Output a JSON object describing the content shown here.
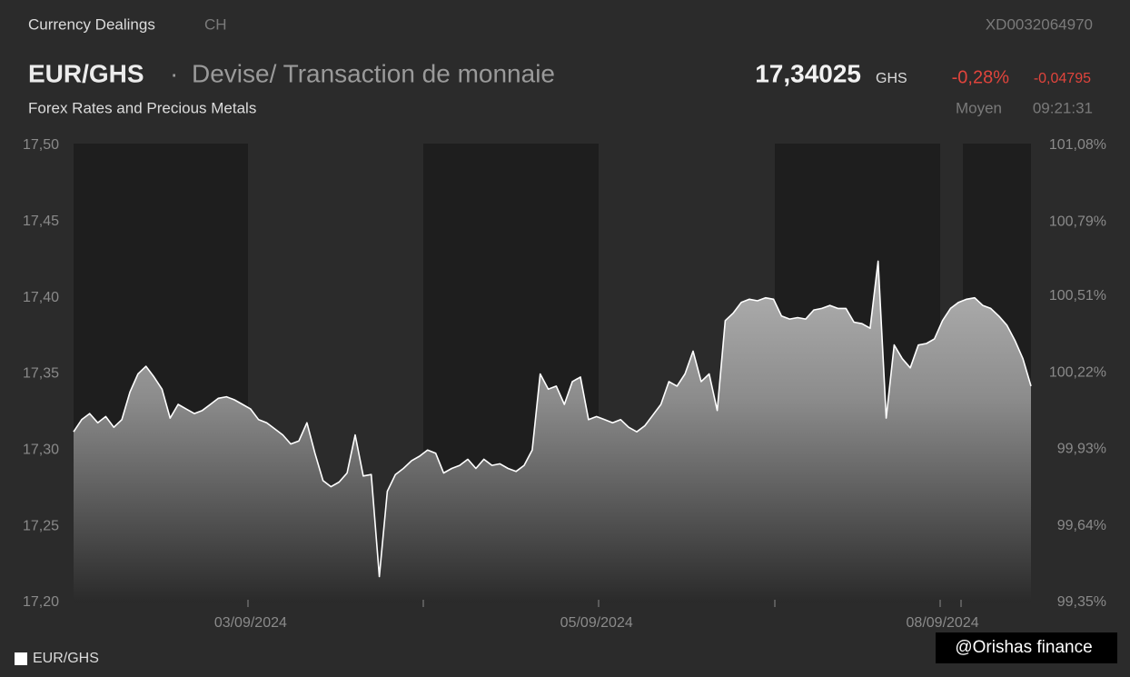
{
  "header": {
    "section": "Currency Dealings",
    "market": "CH",
    "isin": "XD0032064970",
    "symbol": "EUR/GHS",
    "description": "Devise/ Transaction de monnaie",
    "price": "17,34025",
    "currency": "GHS",
    "change_pct": "-0,28%",
    "change_abs": "-0,04795",
    "category": "Forex Rates and Precious Metals",
    "price_type": "Moyen",
    "time": "09:21:31"
  },
  "watermark": "@Orishas finance",
  "chart_data": {
    "type": "area",
    "categories": [
      null,
      null,
      null,
      null,
      null,
      null,
      null,
      null,
      null,
      null,
      null,
      null,
      null,
      null,
      null,
      null,
      null,
      null,
      null,
      null,
      null,
      null,
      "03/09/2024",
      null,
      null,
      null,
      null,
      null,
      null,
      null,
      null,
      null,
      null,
      null,
      null,
      null,
      null,
      null,
      null,
      null,
      null,
      null,
      null,
      null,
      null,
      null,
      null,
      null,
      null,
      null,
      null,
      null,
      null,
      null,
      null,
      null,
      null,
      null,
      null,
      null,
      null,
      null,
      null,
      null,
      null,
      "05/09/2024",
      null,
      null,
      null,
      null,
      null,
      null,
      null,
      null,
      null,
      null,
      null,
      null,
      null,
      null,
      null,
      null,
      null,
      null,
      null,
      null,
      null,
      null,
      null,
      null,
      null,
      null,
      null,
      null,
      null,
      null,
      null,
      null,
      null,
      null,
      null,
      null,
      null,
      null,
      null,
      null,
      null,
      null,
      "08/09/2024",
      null,
      null,
      null,
      null,
      null,
      null,
      null,
      null,
      null,
      null,
      null
    ],
    "series": [
      {
        "name": "EUR/GHS",
        "color": "#ffffff",
        "values": [
          17.312,
          17.32,
          17.324,
          17.318,
          17.322,
          17.315,
          17.32,
          17.338,
          17.35,
          17.355,
          17.348,
          17.34,
          17.321,
          17.33,
          17.327,
          17.324,
          17.326,
          17.33,
          17.334,
          17.335,
          17.333,
          17.33,
          17.327,
          17.32,
          17.318,
          17.314,
          17.31,
          17.304,
          17.306,
          17.318,
          17.298,
          17.28,
          17.276,
          17.279,
          17.285,
          17.31,
          17.283,
          17.284,
          17.217,
          17.273,
          17.284,
          17.288,
          17.293,
          17.296,
          17.3,
          17.298,
          17.285,
          17.288,
          17.29,
          17.294,
          17.288,
          17.294,
          17.29,
          17.291,
          17.288,
          17.286,
          17.29,
          17.3,
          17.35,
          17.34,
          17.342,
          17.33,
          17.345,
          17.348,
          17.32,
          17.322,
          17.32,
          17.318,
          17.32,
          17.315,
          17.312,
          17.316,
          17.323,
          17.33,
          17.345,
          17.342,
          17.35,
          17.365,
          17.345,
          17.35,
          17.326,
          17.385,
          17.39,
          17.397,
          17.399,
          17.398,
          17.4,
          17.399,
          17.388,
          17.386,
          17.387,
          17.386,
          17.392,
          17.393,
          17.395,
          17.393,
          17.393,
          17.384,
          17.383,
          17.38,
          17.424,
          17.321,
          17.369,
          17.36,
          17.354,
          17.369,
          17.37,
          17.373,
          17.385,
          17.393,
          17.397,
          17.399,
          17.4,
          17.395,
          17.393,
          17.388,
          17.382,
          17.372,
          17.36,
          17.342
        ]
      }
    ],
    "ylim": [
      17.2,
      17.5
    ],
    "yticks": [
      {
        "value": 17.5,
        "label": "17,50"
      },
      {
        "value": 17.45,
        "label": "17,45"
      },
      {
        "value": 17.4,
        "label": "17,40"
      },
      {
        "value": 17.35,
        "label": "17,35"
      },
      {
        "value": 17.3,
        "label": "17,30"
      },
      {
        "value": 17.25,
        "label": "17,25"
      },
      {
        "value": 17.2,
        "label": "17,20"
      }
    ],
    "y2lim": [
      99.35,
      101.08
    ],
    "y2ticks": [
      {
        "value": 101.08,
        "label": "101,08%"
      },
      {
        "value": 100.79,
        "label": "100,79%"
      },
      {
        "value": 100.51,
        "label": "100,51%"
      },
      {
        "value": 100.22,
        "label": "100,22%"
      },
      {
        "value": 99.93,
        "label": "99,93%"
      },
      {
        "value": 99.64,
        "label": "99,64%"
      },
      {
        "value": 99.35,
        "label": "99,35%"
      }
    ],
    "grid": false,
    "legend": "bottom-left"
  }
}
